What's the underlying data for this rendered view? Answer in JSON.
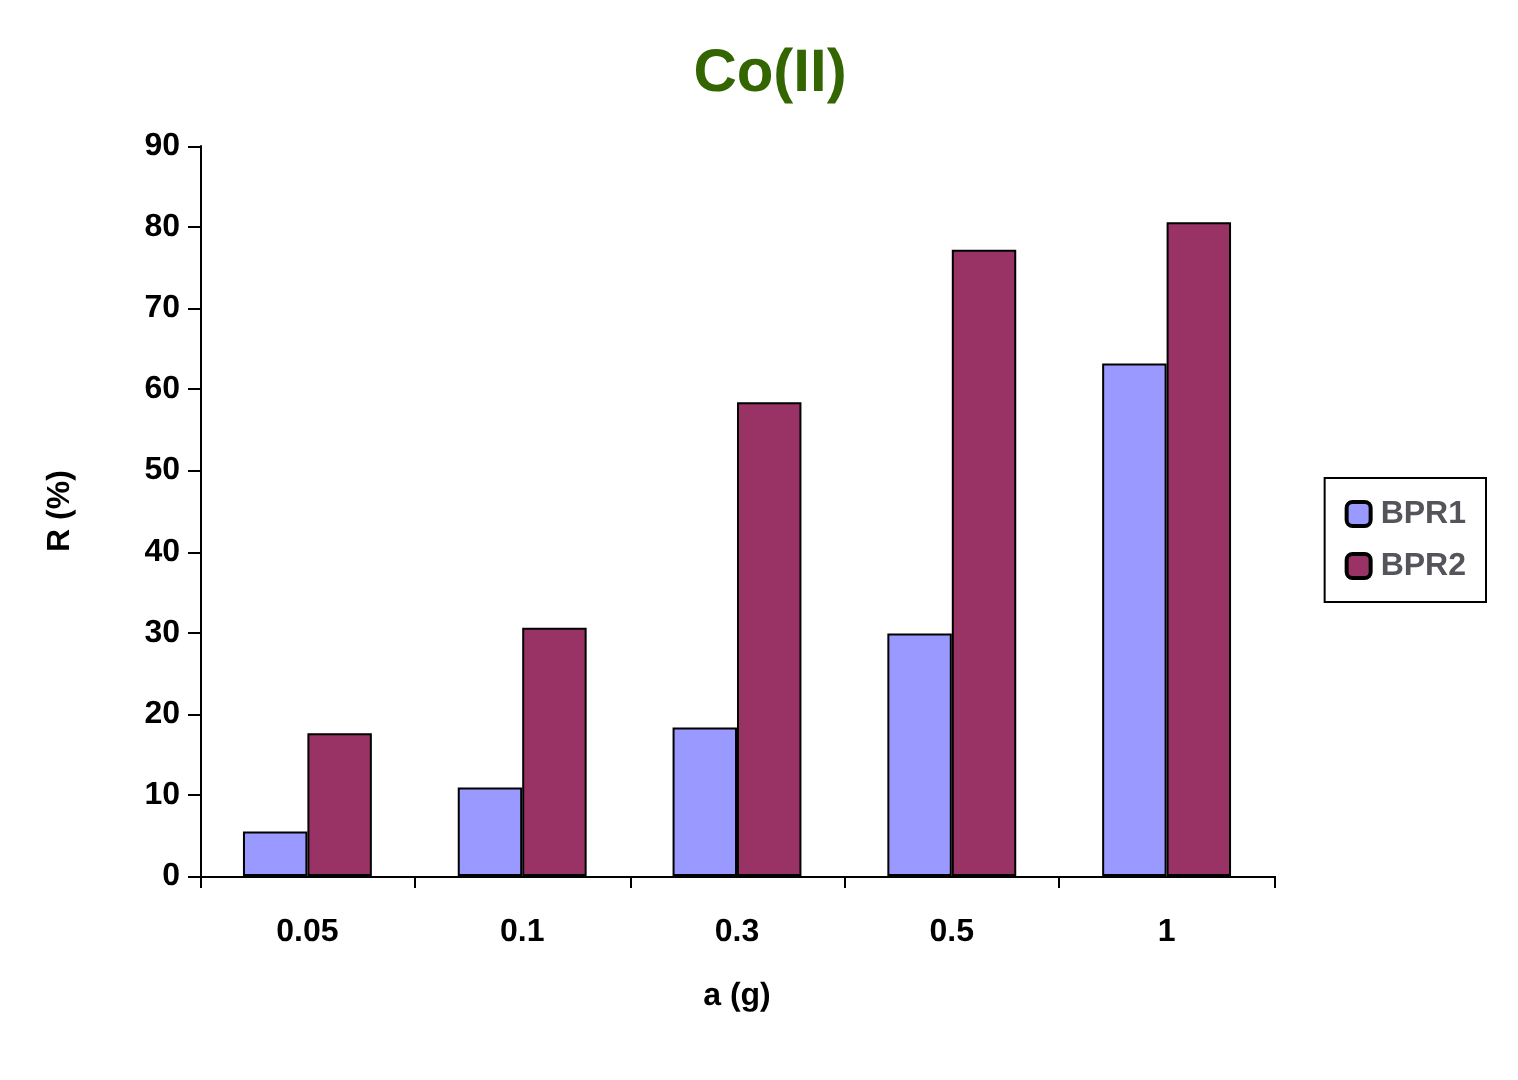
{
  "chart_data": {
    "type": "bar",
    "title": "Co(II)",
    "xlabel": "a (g)",
    "ylabel": "R (%)",
    "categories": [
      "0.05",
      "0.1",
      "0.3",
      "0.5",
      "1"
    ],
    "series": [
      {
        "name": "BPR1",
        "color": "#9999ff",
        "values": [
          5.5,
          10.9,
          18.3,
          29.9,
          63.2
        ]
      },
      {
        "name": "BPR2",
        "color": "#993366",
        "values": [
          17.6,
          30.6,
          58.4,
          77.2,
          80.6
        ]
      }
    ],
    "ylim": [
      0,
      90
    ],
    "yticks": [
      0,
      10,
      20,
      30,
      40,
      50,
      60,
      70,
      80,
      90
    ],
    "grid": false,
    "legend": "right"
  }
}
